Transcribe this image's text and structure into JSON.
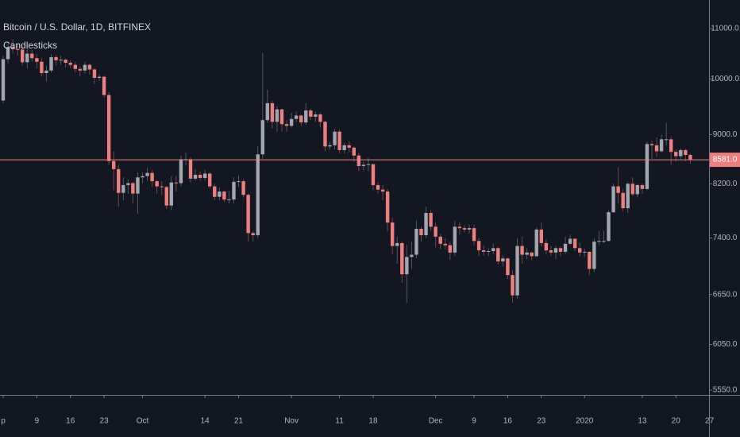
{
  "chart_data": {
    "type": "candlestick",
    "title": "Bitcoin / U.S. Dollar, 1D, BITFINEX",
    "subtitle": "Candlesticks",
    "up_color": "#a3a6af",
    "down_color": "#ef7f7f",
    "log_scale": true,
    "grid": false,
    "ylim": [
      5500,
      11610
    ],
    "yticks": [
      {
        "value": 11000,
        "label": "11000.0"
      },
      {
        "value": 10000,
        "label": "10000.0"
      },
      {
        "value": 9000,
        "label": "9000.0"
      },
      {
        "value": 8200,
        "label": "8200.0"
      },
      {
        "value": 7400,
        "label": "7400.0"
      },
      {
        "value": 6650,
        "label": "6650.0"
      },
      {
        "value": 6050,
        "label": "6050.0"
      },
      {
        "value": 5550,
        "label": "5550.0"
      }
    ],
    "xlim": [
      -0.66,
      146.9
    ],
    "xticks": [
      {
        "value": 0,
        "label": "p"
      },
      {
        "value": 7,
        "label": "9"
      },
      {
        "value": 14,
        "label": "16"
      },
      {
        "value": 21,
        "label": "23"
      },
      {
        "value": 29,
        "label": "Oct"
      },
      {
        "value": 42,
        "label": "14"
      },
      {
        "value": 49,
        "label": "21"
      },
      {
        "value": 60,
        "label": "Nov"
      },
      {
        "value": 70,
        "label": "11"
      },
      {
        "value": 77,
        "label": "18"
      },
      {
        "value": 90,
        "label": "Dec"
      },
      {
        "value": 98,
        "label": "9"
      },
      {
        "value": 105,
        "label": "16"
      },
      {
        "value": 112,
        "label": "23"
      },
      {
        "value": 121,
        "label": "2020"
      },
      {
        "value": 133,
        "label": "13"
      },
      {
        "value": 140,
        "label": "20"
      },
      {
        "value": 147,
        "label": "27"
      }
    ],
    "last_price": {
      "value": 8581,
      "label": "8581.0"
    },
    "open": [
      9600,
      10380,
      10620,
      10580,
      10570,
      10320,
      10490,
      10400,
      10330,
      10110,
      10160,
      10420,
      10360,
      10370,
      10310,
      10270,
      10190,
      10160,
      10270,
      10180,
      10020,
      10040,
      9700,
      8560,
      8430,
      8060,
      8180,
      8210,
      8050,
      8300,
      8320,
      8370,
      8240,
      8160,
      8150,
      7870,
      8220,
      8210,
      8590,
      8590,
      8280,
      8340,
      8290,
      8360,
      8160,
      8000,
      8080,
      7960,
      7960,
      8230,
      8240,
      8030,
      7470,
      7440,
      8670,
      9250,
      9550,
      9220,
      9440,
      9180,
      9150,
      9270,
      9330,
      9210,
      9420,
      9310,
      9350,
      9220,
      8800,
      8820,
      9050,
      8740,
      8820,
      8780,
      8650,
      8480,
      8500,
      8510,
      8180,
      8110,
      8080,
      7620,
      7290,
      7330,
      6910,
      7140,
      7170,
      7530,
      7440,
      7760,
      7560,
      7420,
      7320,
      7300,
      7200,
      7560,
      7540,
      7520,
      7540,
      7360,
      7230,
      7210,
      7220,
      7260,
      7080,
      7120,
      6900,
      6640,
      7290,
      7170,
      7200,
      7150,
      7520,
      7330,
      7230,
      7200,
      7260,
      7210,
      7320,
      7390,
      7260,
      7200,
      7210,
      6980,
      7350,
      7360,
      7360,
      7770,
      8160,
      8060,
      7830,
      8200,
      8040,
      8180,
      8120,
      8840,
      8820,
      8720,
      8920,
      8920,
      8710,
      8640,
      8740,
      8660
    ],
    "high": [
      10450,
      10700,
      10780,
      10680,
      10650,
      10600,
      10560,
      10480,
      10400,
      10250,
      10480,
      10460,
      10450,
      10390,
      10360,
      10330,
      10240,
      10330,
      10290,
      10200,
      10090,
      10060,
      9750,
      8720,
      8500,
      8300,
      8270,
      8230,
      8380,
      8380,
      8450,
      8420,
      8260,
      8240,
      8170,
      8320,
      8320,
      8650,
      8700,
      8620,
      8430,
      8390,
      8420,
      8380,
      8200,
      8140,
      8100,
      8090,
      8300,
      8330,
      8270,
      8050,
      7500,
      8800,
      10500,
      9800,
      9600,
      9500,
      9450,
      9250,
      9380,
      9400,
      9350,
      9550,
      9450,
      9400,
      9380,
      9240,
      8880,
      9100,
      9080,
      8860,
      8890,
      8800,
      8690,
      8550,
      8610,
      8520,
      8230,
      8180,
      8120,
      7690,
      7420,
      7350,
      7300,
      7350,
      7650,
      7560,
      7850,
      7800,
      7620,
      7460,
      7400,
      7350,
      7650,
      7620,
      7580,
      7590,
      7590,
      7400,
      7300,
      7260,
      7320,
      7280,
      7160,
      7130,
      6960,
      7400,
      7420,
      7260,
      7210,
      7550,
      7620,
      7380,
      7290,
      7290,
      7280,
      7420,
      7450,
      7400,
      7340,
      7250,
      7220,
      7400,
      7500,
      7500,
      7800,
      8200,
      8460,
      8120,
      8220,
      8300,
      8200,
      8200,
      8880,
      8900,
      8950,
      9000,
      9200,
      8970,
      8750,
      8770,
      8760,
      8680
    ],
    "low": [
      9550,
      10300,
      10500,
      10450,
      10250,
      10200,
      10330,
      10200,
      10050,
      9950,
      10120,
      10250,
      10270,
      10220,
      10200,
      10120,
      10050,
      10100,
      10080,
      9900,
      9960,
      9650,
      8500,
      8100,
      7850,
      7950,
      8050,
      7900,
      7750,
      8210,
      8250,
      8150,
      8050,
      8030,
      7820,
      7800,
      8080,
      8160,
      8490,
      8220,
      8250,
      8250,
      8250,
      8120,
      7950,
      7950,
      7920,
      7900,
      7900,
      8150,
      7990,
      7350,
      7350,
      7400,
      8600,
      9200,
      9100,
      9050,
      9050,
      9050,
      9120,
      9220,
      9150,
      9170,
      9250,
      9220,
      9120,
      8720,
      8750,
      8750,
      8690,
      8680,
      8700,
      8550,
      8400,
      8400,
      8400,
      8100,
      8050,
      7950,
      7500,
      7180,
      7050,
      6800,
      6550,
      6980,
      7120,
      7350,
      7400,
      7500,
      7270,
      7250,
      7240,
      7100,
      7150,
      7450,
      7480,
      7460,
      7300,
      7150,
      7160,
      7150,
      7180,
      7040,
      7010,
      6850,
      6550,
      6600,
      7050,
      7110,
      7100,
      7140,
      7280,
      7170,
      7150,
      7110,
      7150,
      7180,
      7300,
      7220,
      7150,
      7140,
      6900,
      6940,
      7300,
      7330,
      7350,
      7760,
      7900,
      7780,
      7760,
      8010,
      7990,
      8050,
      8100,
      8600,
      8630,
      8700,
      8820,
      8500,
      8550,
      8580,
      8560,
      8520
    ],
    "close": [
      10380,
      10620,
      10580,
      10570,
      10320,
      10490,
      10400,
      10330,
      10110,
      10160,
      10420,
      10360,
      10370,
      10310,
      10270,
      10190,
      10160,
      10270,
      10180,
      10020,
      10040,
      9700,
      8560,
      8430,
      8060,
      8180,
      8210,
      8050,
      8300,
      8320,
      8370,
      8240,
      8160,
      8150,
      7870,
      8220,
      8210,
      8590,
      8590,
      8280,
      8340,
      8290,
      8360,
      8160,
      8000,
      8080,
      7960,
      7960,
      8230,
      8240,
      8030,
      7470,
      7440,
      8670,
      9250,
      9550,
      9220,
      9440,
      9180,
      9150,
      9270,
      9330,
      9210,
      9420,
      9310,
      9350,
      9220,
      8800,
      8820,
      9050,
      8740,
      8820,
      8780,
      8650,
      8480,
      8500,
      8510,
      8180,
      8110,
      8080,
      7620,
      7290,
      7330,
      6910,
      7140,
      7170,
      7530,
      7440,
      7760,
      7560,
      7420,
      7320,
      7300,
      7200,
      7560,
      7540,
      7520,
      7540,
      7360,
      7230,
      7210,
      7220,
      7260,
      7080,
      7120,
      6900,
      6640,
      7290,
      7170,
      7200,
      7150,
      7520,
      7330,
      7230,
      7200,
      7260,
      7210,
      7320,
      7390,
      7260,
      7200,
      7210,
      6980,
      7350,
      7360,
      7360,
      7770,
      8160,
      8060,
      7830,
      8200,
      8040,
      8180,
      8120,
      8840,
      8820,
      8720,
      8920,
      8920,
      8710,
      8640,
      8740,
      8660,
      8581
    ]
  }
}
